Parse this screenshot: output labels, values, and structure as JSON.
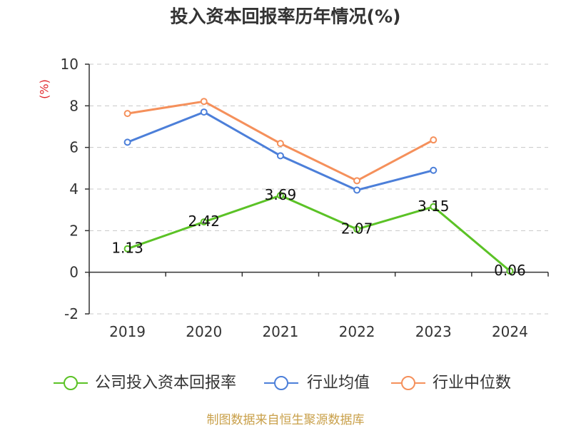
{
  "chart_data": {
    "type": "line",
    "title": "投入资本回报率历年情况(%)",
    "xlabel": "",
    "ylabel": "(%)",
    "categories": [
      "2019",
      "2020",
      "2021",
      "2022",
      "2023",
      "2024"
    ],
    "ylim": [
      -2,
      10
    ],
    "yticks": [
      10,
      8,
      6,
      4,
      2,
      0,
      -2
    ],
    "grid": true,
    "legend": "bottom",
    "series": [
      {
        "name": "公司投入资本回报率",
        "color": "#5bc226",
        "data_labels": true,
        "values": [
          1.13,
          2.42,
          3.69,
          2.07,
          3.15,
          0.06
        ]
      },
      {
        "name": "行业均值",
        "color": "#4c7fd9",
        "data_labels": false,
        "values": [
          6.25,
          7.7,
          5.6,
          3.95,
          4.9,
          null
        ]
      },
      {
        "name": "行业中位数",
        "color": "#f5905b",
        "data_labels": false,
        "values": [
          7.63,
          8.21,
          6.19,
          4.4,
          6.36,
          null
        ]
      }
    ]
  },
  "footer": "制图数据来自恒生聚源数据库",
  "colors": {
    "ylabel": "#e0262b",
    "footer": "#c9a04a",
    "axis": "#333333",
    "grid": "#c8c8c8"
  }
}
